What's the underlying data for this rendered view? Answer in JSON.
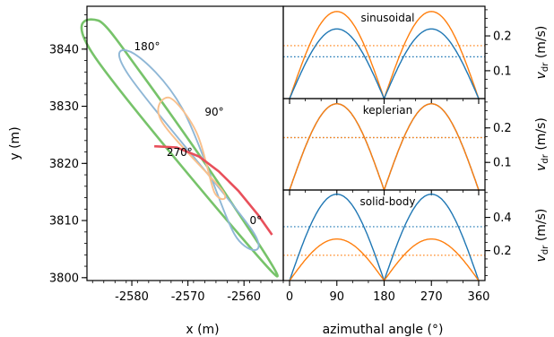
{
  "chart_data": [
    {
      "type": "line",
      "panel": "left",
      "xlabel": "x (m)",
      "ylabel": "y (m)",
      "xlim": [
        -2588,
        -2553
      ],
      "ylim": [
        3799.5,
        3847.5
      ],
      "xticks": [
        -2580,
        -2570,
        -2560
      ],
      "xtick_labels": [
        "-2580",
        "-2570",
        "-2560"
      ],
      "yticks": [
        3800,
        3810,
        3820,
        3830,
        3840
      ],
      "ytick_labels": [
        "3800",
        "3810",
        "3820",
        "3830",
        "3840"
      ],
      "colors": {
        "green": "#77c36a",
        "blue": "#8fb7d6",
        "orange": "#f9c08c",
        "red": "#e8505b"
      },
      "ellipses": [
        {
          "color": "green",
          "points": [
            [
              -2586.0,
              3845.0
            ],
            [
              -2578.5,
              3836.0
            ],
            [
              -2563.5,
              3815.0
            ],
            [
              -2555.0,
              3801.0
            ],
            [
              -2586.5,
              3838.5
            ]
          ]
        },
        {
          "color": "blue",
          "points": [
            [
              -2579.6,
              3839.2
            ],
            [
              -2571.0,
              3829.6
            ],
            [
              -2561.7,
              3807.6
            ],
            [
              -2558.5,
              3808.2
            ],
            [
              -2580.6,
              3835.5
            ]
          ]
        },
        {
          "color": "orange",
          "points": [
            [
              -2573.3,
              3831.5
            ],
            [
              -2568.5,
              3825.5
            ],
            [
              -2565.3,
              3815.0
            ],
            [
              -2563.9,
              3815.3
            ],
            [
              -2574.7,
              3827.4
            ]
          ]
        }
      ],
      "red_line": {
        "x": [
          -2576.0,
          -2572.0,
          -2568.0,
          -2564.5,
          -2561.0,
          -2557.5,
          -2555.0
        ],
        "y": [
          3823.0,
          3822.8,
          3821.2,
          3818.6,
          3815.2,
          3811.0,
          3807.5
        ]
      },
      "annotations": [
        {
          "text": "180°",
          "x": -2579.6,
          "y": 3839.8
        },
        {
          "text": "90°",
          "x": -2567.0,
          "y": 3828.4
        },
        {
          "text": "270°",
          "x": -2573.8,
          "y": 3821.3
        },
        {
          "text": "0°",
          "x": -2559.0,
          "y": 3809.4
        }
      ]
    },
    {
      "type": "line",
      "panel": "top-right",
      "title": "sinusoidal",
      "xlim": [
        -12,
        372
      ],
      "ylim": [
        0.02,
        0.285
      ],
      "yticks": [
        0.1,
        0.2
      ],
      "ytick_labels": [
        "0.1",
        "0.2"
      ],
      "ylabel": "v_dr (m/s)",
      "series": [
        {
          "color": "#ff7f0e",
          "amplitude": 0.27,
          "shape": "abs-sin"
        },
        {
          "color": "#1f77b4",
          "amplitude": 0.22,
          "shape": "abs-sin"
        }
      ],
      "means": [
        {
          "color": "#ff7f0e",
          "value": 0.172
        },
        {
          "color": "#1f77b4",
          "value": 0.14
        }
      ]
    },
    {
      "type": "line",
      "panel": "middle-right",
      "title": "keplerian",
      "xlim": [
        -12,
        372
      ],
      "ylim": [
        0.02,
        0.285
      ],
      "yticks": [
        0.1,
        0.2
      ],
      "ytick_labels": [
        "0.1",
        "0.2"
      ],
      "ylabel": "v_dr (m/s)",
      "series": [
        {
          "color": "#1f77b4",
          "amplitude": 0.27,
          "shape": "abs-sin"
        },
        {
          "color": "#ff7f0e",
          "amplitude": 0.27,
          "shape": "abs-sin"
        }
      ],
      "means": [
        {
          "color": "#1f77b4",
          "value": 0.172
        },
        {
          "color": "#ff7f0e",
          "value": 0.172
        }
      ]
    },
    {
      "type": "line",
      "panel": "bottom-right",
      "title": "solid-body",
      "xlim": [
        -12,
        372
      ],
      "ylim": [
        0.02,
        0.565
      ],
      "xticks": [
        0,
        90,
        180,
        270,
        360
      ],
      "xtick_labels": [
        "0",
        "90",
        "180",
        "270",
        "360"
      ],
      "xlabel": "azimuthal angle (°)",
      "yticks": [
        0.2,
        0.4
      ],
      "ytick_labels": [
        "0.2",
        "0.4"
      ],
      "ylabel": "v_dr (m/s)",
      "series": [
        {
          "color": "#1f77b4",
          "amplitude": 0.54,
          "shape": "abs-sin"
        },
        {
          "color": "#ff7f0e",
          "amplitude": 0.27,
          "shape": "abs-sin"
        }
      ],
      "means": [
        {
          "color": "#1f77b4",
          "value": 0.344
        },
        {
          "color": "#ff7f0e",
          "value": 0.172
        }
      ]
    }
  ]
}
